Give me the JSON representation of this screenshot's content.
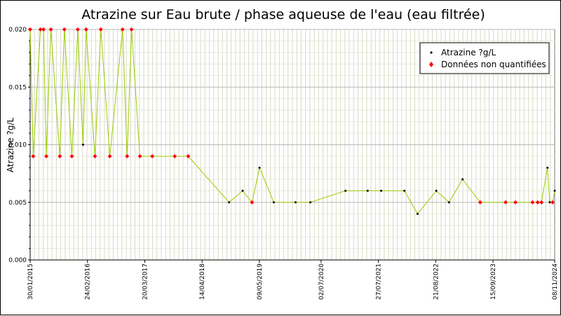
{
  "chart_data": {
    "type": "line",
    "title": "Atrazine sur Eau brute / phase aqueuse de l'eau (eau filtrée)",
    "ylabel": "Atrazine ?g/L",
    "xlabel": "",
    "ylim": [
      0,
      0.02
    ],
    "xlim": [
      "2015-01-30",
      "2024-11-08"
    ],
    "grid": true,
    "legend_position": "top-right",
    "y_ticks": [
      {
        "value": 0,
        "label": "0.000"
      },
      {
        "value": 0.005,
        "label": "0.005"
      },
      {
        "value": 0.01,
        "label": "0.010"
      },
      {
        "value": 0.015,
        "label": "0.015"
      },
      {
        "value": 0.02,
        "label": "0.020"
      }
    ],
    "x_ticks": [
      {
        "date": "2015-01-30",
        "label": "30/01/2015"
      },
      {
        "date": "2016-02-24",
        "label": "24/02/2016"
      },
      {
        "date": "2017-03-20",
        "label": "20/03/2017"
      },
      {
        "date": "2018-04-14",
        "label": "14/04/2018"
      },
      {
        "date": "2019-05-09",
        "label": "09/05/2019"
      },
      {
        "date": "2020-07-02",
        "label": "02/07/2020"
      },
      {
        "date": "2021-07-27",
        "label": "27/07/2021"
      },
      {
        "date": "2022-08-21",
        "label": "21/08/2022"
      },
      {
        "date": "2023-09-15",
        "label": "15/09/2023"
      },
      {
        "date": "2024-11-08",
        "label": "08/11/2024"
      }
    ],
    "series": [
      {
        "name": "Atrazine ?g/L",
        "color": "#000000",
        "marker": "dot"
      },
      {
        "name": "Données non quantifiées",
        "color": "#ff0000",
        "marker": "diamond"
      }
    ],
    "line_color": "#99cc00",
    "points": [
      {
        "date": "2015-01-30",
        "y": 0.02,
        "q": false
      },
      {
        "date": "2015-02-20",
        "y": 0.009,
        "q": false
      },
      {
        "date": "2015-04-10",
        "y": 0.02,
        "q": false
      },
      {
        "date": "2015-05-01",
        "y": 0.02,
        "q": false
      },
      {
        "date": "2015-05-20",
        "y": 0.009,
        "q": false
      },
      {
        "date": "2015-06-20",
        "y": 0.02,
        "q": false
      },
      {
        "date": "2015-08-20",
        "y": 0.009,
        "q": false
      },
      {
        "date": "2015-09-20",
        "y": 0.02,
        "q": false
      },
      {
        "date": "2015-11-10",
        "y": 0.009,
        "q": false
      },
      {
        "date": "2015-12-20",
        "y": 0.02,
        "q": false
      },
      {
        "date": "2016-01-25",
        "y": 0.01,
        "q": true
      },
      {
        "date": "2016-02-15",
        "y": 0.02,
        "q": false
      },
      {
        "date": "2016-04-15",
        "y": 0.009,
        "q": false
      },
      {
        "date": "2016-05-25",
        "y": 0.02,
        "q": false
      },
      {
        "date": "2016-07-25",
        "y": 0.009,
        "q": false
      },
      {
        "date": "2016-10-20",
        "y": 0.02,
        "q": false
      },
      {
        "date": "2016-11-20",
        "y": 0.009,
        "q": false
      },
      {
        "date": "2016-12-20",
        "y": 0.02,
        "q": false
      },
      {
        "date": "2017-02-15",
        "y": 0.009,
        "q": false
      },
      {
        "date": "2017-05-10",
        "y": 0.009,
        "q": false
      },
      {
        "date": "2017-10-10",
        "y": 0.009,
        "q": false
      },
      {
        "date": "2018-01-10",
        "y": 0.009,
        "q": false
      },
      {
        "date": "2018-10-15",
        "y": 0.005,
        "q": true
      },
      {
        "date": "2019-01-15",
        "y": 0.006,
        "q": true
      },
      {
        "date": "2019-03-20",
        "y": 0.005,
        "q": false
      },
      {
        "date": "2019-05-10",
        "y": 0.008,
        "q": true
      },
      {
        "date": "2019-08-15",
        "y": 0.005,
        "q": true
      },
      {
        "date": "2020-01-10",
        "y": 0.005,
        "q": true
      },
      {
        "date": "2020-04-20",
        "y": 0.005,
        "q": true
      },
      {
        "date": "2020-12-15",
        "y": 0.006,
        "q": true
      },
      {
        "date": "2021-05-15",
        "y": 0.006,
        "q": true
      },
      {
        "date": "2021-08-15",
        "y": 0.006,
        "q": true
      },
      {
        "date": "2022-01-20",
        "y": 0.006,
        "q": true
      },
      {
        "date": "2022-04-20",
        "y": 0.004,
        "q": true
      },
      {
        "date": "2022-08-25",
        "y": 0.006,
        "q": true
      },
      {
        "date": "2022-11-20",
        "y": 0.005,
        "q": true
      },
      {
        "date": "2023-02-20",
        "y": 0.007,
        "q": true
      },
      {
        "date": "2023-06-20",
        "y": 0.005,
        "q": false
      },
      {
        "date": "2023-12-10",
        "y": 0.005,
        "q": false
      },
      {
        "date": "2024-02-15",
        "y": 0.005,
        "q": false
      },
      {
        "date": "2024-06-10",
        "y": 0.005,
        "q": false
      },
      {
        "date": "2024-07-15",
        "y": 0.005,
        "q": false
      },
      {
        "date": "2024-08-10",
        "y": 0.005,
        "q": false
      },
      {
        "date": "2024-09-20",
        "y": 0.008,
        "q": true
      },
      {
        "date": "2024-10-05",
        "y": 0.005,
        "q": true
      },
      {
        "date": "2024-10-25",
        "y": 0.005,
        "q": false
      },
      {
        "date": "2024-11-08",
        "y": 0.006,
        "q": true
      }
    ]
  }
}
